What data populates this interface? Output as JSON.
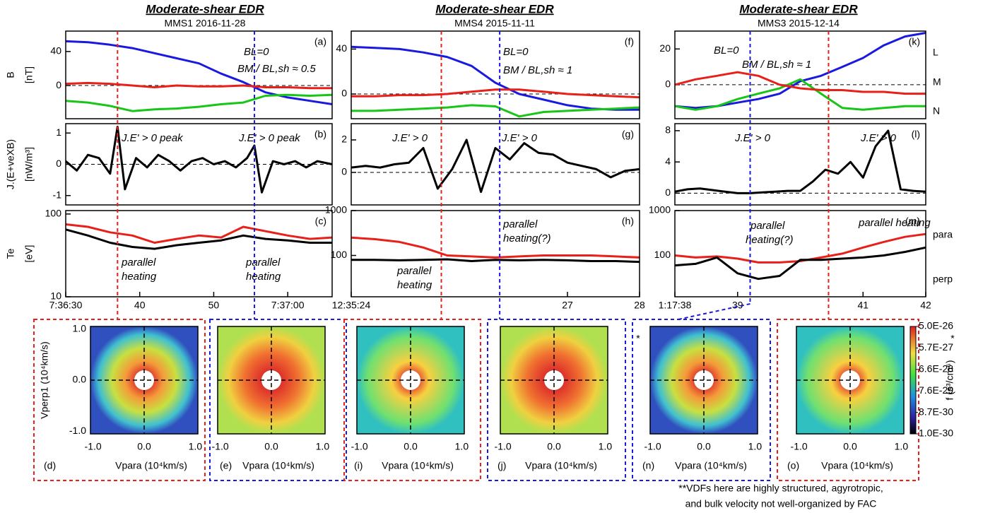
{
  "columns": [
    {
      "title": "Moderate-shear EDR",
      "subtitle": "MMS1 2016-11-28",
      "markers": [
        {
          "x": 37,
          "color": "#e8201a"
        },
        {
          "x": 55.5,
          "color": "#1a1adf"
        }
      ]
    },
    {
      "title": "Moderate-shear EDR",
      "subtitle": "MMS4 2015-11-11",
      "markers": [
        {
          "x": 25.25,
          "color": "#e8201a"
        },
        {
          "x": 26.06,
          "color": "#1a1adf"
        }
      ]
    },
    {
      "title": "Moderate-shear EDR",
      "subtitle": "MMS3 2015-12-14",
      "markers": [
        {
          "x": 40.45,
          "color": "#e8201a"
        },
        {
          "x": 39.2,
          "color": "#1a1adf"
        }
      ]
    }
  ],
  "row_labels": [
    {
      "name": "B",
      "unit": "[nT]"
    },
    {
      "name": "J.(E+veXB)",
      "unit": "[nW/m³]"
    },
    {
      "name": "Te",
      "unit": "[eV]"
    }
  ],
  "chart_data": [
    {
      "type": "line",
      "panel_label": "(a)",
      "xlim": [
        30,
        66
      ],
      "ylim": [
        -39,
        64
      ],
      "yticks": [
        0,
        40
      ],
      "zero_line": true,
      "x": [
        30,
        33,
        36,
        39,
        42,
        45,
        48,
        51,
        54,
        57,
        60,
        63,
        66
      ],
      "series": [
        {
          "color": "#1a1adf",
          "values": [
            52,
            51,
            48,
            44,
            38,
            32,
            26,
            14,
            4,
            -8,
            -14,
            -18,
            -22
          ]
        },
        {
          "color": "#e8201a",
          "values": [
            2,
            3,
            2,
            0,
            -2,
            0,
            -1,
            -1,
            0,
            -2,
            -2,
            -3,
            -3
          ]
        },
        {
          "color": "#17c617",
          "values": [
            -18,
            -20,
            -24,
            -30,
            -28,
            -27,
            -25,
            -22,
            -20,
            -12,
            -11,
            -12,
            -11
          ]
        }
      ],
      "annotations": [
        {
          "text": "BL=0",
          "color": "#1a1adf"
        },
        {
          "text": "BM / BL,sh ≈ 0.5",
          "color": "#17c617"
        }
      ]
    },
    {
      "type": "line",
      "panel_label": "(b)",
      "xlim": [
        30,
        66
      ],
      "ylim": [
        -1.3,
        1.3
      ],
      "yticks": [
        -1,
        0,
        1
      ],
      "zero_line": true,
      "x": [
        30,
        31.5,
        33,
        34.5,
        36,
        37,
        38,
        39.5,
        41,
        42.5,
        44,
        45.5,
        47,
        48.5,
        50,
        51.5,
        53,
        54.5,
        55.5,
        56.5,
        58,
        59.5,
        61,
        62.5,
        64,
        66
      ],
      "series": [
        {
          "color": "#000000",
          "values": [
            0.1,
            -0.2,
            0.3,
            0.2,
            -0.3,
            1.2,
            -0.8,
            0.2,
            -0.1,
            0.3,
            0.1,
            -0.2,
            0.1,
            0.2,
            0,
            0.1,
            -0.1,
            0.2,
            0.6,
            -0.9,
            0.1,
            0,
            0.1,
            -0.1,
            0.1,
            0
          ]
        }
      ],
      "annotations": [
        {
          "text": "J.E' > 0  peak",
          "color": "#e8201a"
        },
        {
          "text": "J.E' > 0 peak",
          "color": "#1a1adf"
        }
      ]
    },
    {
      "type": "line",
      "panel_label": "(c)",
      "log": true,
      "xlim": [
        30,
        66
      ],
      "ylim": [
        10,
        110
      ],
      "yticks": [
        10,
        100
      ],
      "xticks": [
        {
          "value": 30,
          "label": "7:36:30"
        },
        40,
        50,
        {
          "value": 60,
          "label": "7:37:00"
        }
      ],
      "x": [
        30,
        33,
        36,
        39,
        42,
        45,
        48,
        51,
        54,
        57,
        60,
        63,
        66
      ],
      "series": [
        {
          "color": "#e8201a",
          "values": [
            75,
            70,
            60,
            55,
            45,
            50,
            55,
            52,
            70,
            62,
            55,
            50,
            52
          ]
        },
        {
          "color": "#000000",
          "values": [
            65,
            55,
            45,
            40,
            38,
            42,
            45,
            48,
            55,
            50,
            48,
            45,
            45
          ]
        }
      ],
      "annotations": [
        {
          "text": "parallel",
          "color": "#e8201a"
        },
        {
          "text": "heating",
          "color": "#e8201a"
        },
        {
          "text": "parallel",
          "color": "#1a1adf"
        },
        {
          "text": "heating",
          "color": "#1a1adf"
        }
      ]
    },
    {
      "type": "line",
      "panel_label": "(f)",
      "xlim": [
        24,
        28
      ],
      "ylim": [
        -22,
        56
      ],
      "yticks": [
        0,
        40
      ],
      "zero_line": true,
      "x": [
        24,
        24.33,
        24.67,
        25,
        25.33,
        25.67,
        26,
        26.33,
        26.67,
        27,
        27.33,
        27.67,
        28
      ],
      "series": [
        {
          "color": "#1a1adf",
          "values": [
            42,
            41,
            40,
            37,
            33,
            25,
            10,
            0,
            -5,
            -10,
            -13,
            -14,
            -14
          ]
        },
        {
          "color": "#e8201a",
          "values": [
            -2,
            -2,
            -1,
            -1,
            0,
            2,
            4,
            4,
            2,
            0,
            -1,
            -2,
            -3
          ]
        },
        {
          "color": "#17c617",
          "values": [
            -15,
            -15,
            -14,
            -13,
            -12,
            -10,
            -11,
            -20,
            -16,
            -15,
            -14,
            -13,
            -12
          ]
        }
      ],
      "annotations": [
        {
          "text": "BL=0",
          "color": "#1a1adf"
        },
        {
          "text": "BM / BL,sh ≈ 1",
          "color": "#17c617"
        }
      ]
    },
    {
      "type": "line",
      "panel_label": "(g)",
      "xlim": [
        24,
        28
      ],
      "ylim": [
        -2,
        3
      ],
      "yticks": [
        0,
        2
      ],
      "zero_line": true,
      "x": [
        24,
        24.2,
        24.4,
        24.6,
        24.8,
        25,
        25.2,
        25.4,
        25.6,
        25.8,
        26,
        26.2,
        26.4,
        26.6,
        26.8,
        27,
        27.2,
        27.4,
        27.6,
        27.8,
        28
      ],
      "series": [
        {
          "color": "#000000",
          "values": [
            0.3,
            0.4,
            0.3,
            0.5,
            0.6,
            1.5,
            -1,
            0.2,
            2,
            -1.2,
            1.5,
            0.8,
            1.8,
            1.2,
            1.1,
            0.6,
            0.4,
            0.2,
            -0.3,
            0.1,
            0.2
          ]
        }
      ],
      "annotations": [
        {
          "text": "J.E' > 0",
          "color": "#e8201a"
        },
        {
          "text": "J.E' > 0",
          "color": "#1a1adf"
        }
      ]
    },
    {
      "type": "line",
      "panel_label": "(h)",
      "log": true,
      "xlim": [
        24,
        28
      ],
      "ylim": [
        12,
        1000
      ],
      "yticks": [
        100,
        1000
      ],
      "xticks": [
        {
          "value": 24,
          "label": "12:35:24"
        },
        27,
        28
      ],
      "x": [
        24,
        24.33,
        24.67,
        25,
        25.33,
        25.67,
        26,
        26.33,
        26.67,
        27,
        27.33,
        27.67,
        28
      ],
      "series": [
        {
          "color": "#e8201a",
          "values": [
            250,
            230,
            200,
            150,
            100,
            95,
            90,
            95,
            100,
            100,
            100,
            95,
            90
          ]
        },
        {
          "color": "#000000",
          "values": [
            80,
            80,
            78,
            80,
            82,
            75,
            80,
            78,
            80,
            78,
            75,
            75,
            72
          ]
        }
      ],
      "annotations": [
        {
          "text": "parallel",
          "color": "#1a1adf"
        },
        {
          "text": "heating(?)",
          "color": "#1a1adf"
        },
        {
          "text": "parallel",
          "color": "#e8201a"
        },
        {
          "text": "heating",
          "color": "#e8201a"
        }
      ]
    },
    {
      "type": "line",
      "panel_label": "(k)",
      "xlim": [
        38,
        42
      ],
      "ylim": [
        -19,
        30
      ],
      "yticks": [
        0,
        20
      ],
      "zero_line": true,
      "x": [
        38,
        38.33,
        38.67,
        39,
        39.33,
        39.67,
        40,
        40.33,
        40.67,
        41,
        41.33,
        41.67,
        42
      ],
      "series": [
        {
          "name": "L",
          "color": "#1a1adf",
          "values": [
            -12,
            -13,
            -12,
            -10,
            -8,
            -5,
            2,
            5,
            10,
            15,
            22,
            27,
            29
          ]
        },
        {
          "name": "M",
          "color": "#17c617",
          "values": [
            -12,
            -14,
            -12,
            -8,
            -5,
            -2,
            3,
            -5,
            -13,
            -14,
            -13,
            -12,
            -12
          ]
        },
        {
          "name": "N",
          "color": "#e8201a",
          "values": [
            0,
            3,
            5,
            7,
            5,
            0,
            -2,
            -3,
            -3,
            -4,
            -4,
            -5,
            -5
          ]
        }
      ],
      "annotations": [
        {
          "text": "BL=0",
          "color": "#1a1adf"
        },
        {
          "text": "BM / BL,sh ≈ 1",
          "color": "#17c617"
        }
      ]
    },
    {
      "type": "line",
      "panel_label": "(l)",
      "xlim": [
        38,
        42
      ],
      "ylim": [
        -1.5,
        8.9
      ],
      "yticks": [
        0,
        4,
        8
      ],
      "zero_line": true,
      "x": [
        38,
        38.2,
        38.4,
        38.6,
        38.8,
        39,
        39.2,
        39.4,
        39.6,
        39.8,
        40,
        40.2,
        40.4,
        40.6,
        40.8,
        41,
        41.2,
        41.4,
        41.6,
        41.8,
        42
      ],
      "series": [
        {
          "color": "#000000",
          "values": [
            0.2,
            0.5,
            0.6,
            0.4,
            0.2,
            0,
            0,
            0.1,
            0.2,
            0.3,
            0.3,
            1.5,
            3,
            2.5,
            4,
            2,
            6,
            8,
            0.5,
            0.3,
            0.2
          ]
        }
      ],
      "annotations": [
        {
          "text": "J.E' > 0",
          "color": "#1a1adf"
        },
        {
          "text": "J.E' > 0",
          "color": "#e8201a"
        }
      ]
    },
    {
      "type": "line",
      "panel_label": "(m)",
      "log": true,
      "xlim": [
        38,
        42
      ],
      "ylim": [
        12,
        1000
      ],
      "yticks": [
        100,
        1000
      ],
      "xticks": [
        {
          "value": 38,
          "label": "1:17:38"
        },
        39,
        41,
        42
      ],
      "x": [
        38,
        38.33,
        38.67,
        39,
        39.33,
        39.67,
        40,
        40.33,
        40.67,
        41,
        41.33,
        41.67,
        42
      ],
      "series": [
        {
          "name": "para",
          "color": "#e8201a",
          "values": [
            100,
            90,
            95,
            85,
            70,
            70,
            75,
            90,
            110,
            150,
            200,
            260,
            300
          ]
        },
        {
          "name": "perp",
          "color": "#000000",
          "values": [
            60,
            65,
            90,
            40,
            30,
            35,
            80,
            80,
            85,
            90,
            100,
            120,
            150
          ]
        }
      ],
      "annotations": [
        {
          "text": "parallel",
          "color": "#1a1adf"
        },
        {
          "text": "heating(?)",
          "color": "#1a1adf"
        },
        {
          "text": "parallel heating",
          "color": "#e8201a"
        }
      ]
    }
  ],
  "vdf": {
    "xlabel": "Vpara (10⁴km/s)",
    "ylabel": "Vperp1 (10⁴km/s)",
    "lim": [
      -1.05,
      1.05
    ],
    "ticks": [
      {
        "value": -1,
        "label": "-1.0"
      },
      {
        "value": 0,
        "label": "0.0"
      },
      {
        "value": 1,
        "label": "1.0"
      }
    ],
    "panels": [
      {
        "label": "(d)",
        "border": "#e8201a"
      },
      {
        "label": "(e)",
        "border": "#1a1adf"
      },
      {
        "label": "(i)",
        "border": "#e8201a"
      },
      {
        "label": "(j)",
        "border": "#1a1adf"
      },
      {
        "label": "(n)",
        "border": "#1a1adf",
        "note": "*"
      },
      {
        "label": "(o)",
        "border": "#e8201a",
        "note": "*"
      }
    ],
    "colorbar": {
      "label": "f (s³/cm⁶)",
      "lim": [
        1e-30,
        5e-26
      ],
      "ticks": [
        {
          "value": 5e-26,
          "label": "5.0E-26"
        },
        {
          "value": 5.7e-27,
          "label": "5.7E-27"
        },
        {
          "value": 6.6e-28,
          "label": "6.6E-28"
        },
        {
          "value": 7.6e-29,
          "label": "7.6E-29"
        },
        {
          "value": 8.7e-30,
          "label": "8.7E-30"
        },
        {
          "value": 1e-30,
          "label": "1.0E-30"
        }
      ]
    }
  },
  "footnote": [
    "**VDFs here are highly structured, agyrotropic,",
    "and bulk velocity not well-organized by FAC"
  ]
}
